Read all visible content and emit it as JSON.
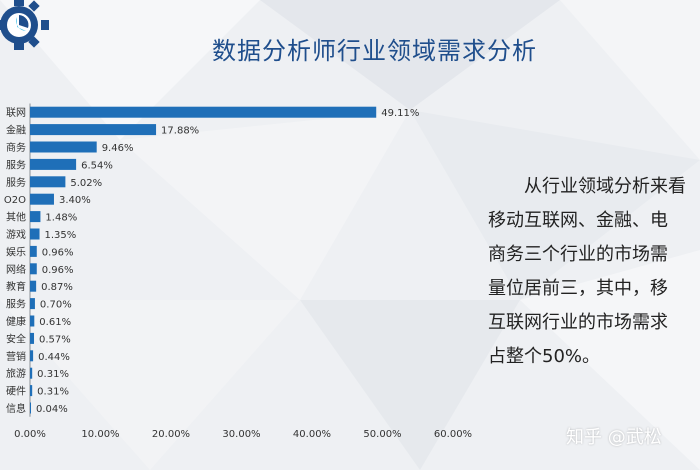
{
  "slide": {
    "title": "数据分析师行业领域需求分析",
    "description_lines": [
      "从行业领域分析来看",
      "移动互联网、金融、电",
      "商务三个行业的市场需",
      "量位居前三，其中，移",
      "互联网行业的市场需求",
      "占整个50%。"
    ],
    "watermark": "知乎 @武松",
    "icon": "gear-chart-icon",
    "accent_color": "#1f4e8c",
    "bar_color": "#1f6fb8"
  },
  "chart_data": {
    "type": "bar",
    "orientation": "horizontal",
    "categories": [
      "联网",
      "金融",
      "商务",
      "服务",
      "服务",
      "O2O",
      "其他",
      "游戏",
      "娱乐",
      "网络",
      "教育",
      "服务",
      "健康",
      "安全",
      "营销",
      "旅游",
      "硬件",
      "信息"
    ],
    "values": [
      49.11,
      17.88,
      9.46,
      6.54,
      5.02,
      3.4,
      1.48,
      1.35,
      0.96,
      0.96,
      0.87,
      0.7,
      0.61,
      0.57,
      0.44,
      0.31,
      0.31,
      0.04
    ],
    "value_labels": [
      "49.11%",
      "17.88%",
      "9.46%",
      "6.54%",
      "5.02%",
      "3.40%",
      "1.48%",
      "1.35%",
      "0.96%",
      "0.96%",
      "0.87%",
      "0.70%",
      "0.61%",
      "0.57%",
      "0.44%",
      "0.31%",
      "0.31%",
      "0.04%"
    ],
    "xlim": [
      0,
      60
    ],
    "xticks": [
      "0.00%",
      "10.00%",
      "20.00%",
      "30.00%",
      "40.00%",
      "50.00%",
      "60.00%"
    ],
    "grid": false,
    "legend": "none"
  }
}
